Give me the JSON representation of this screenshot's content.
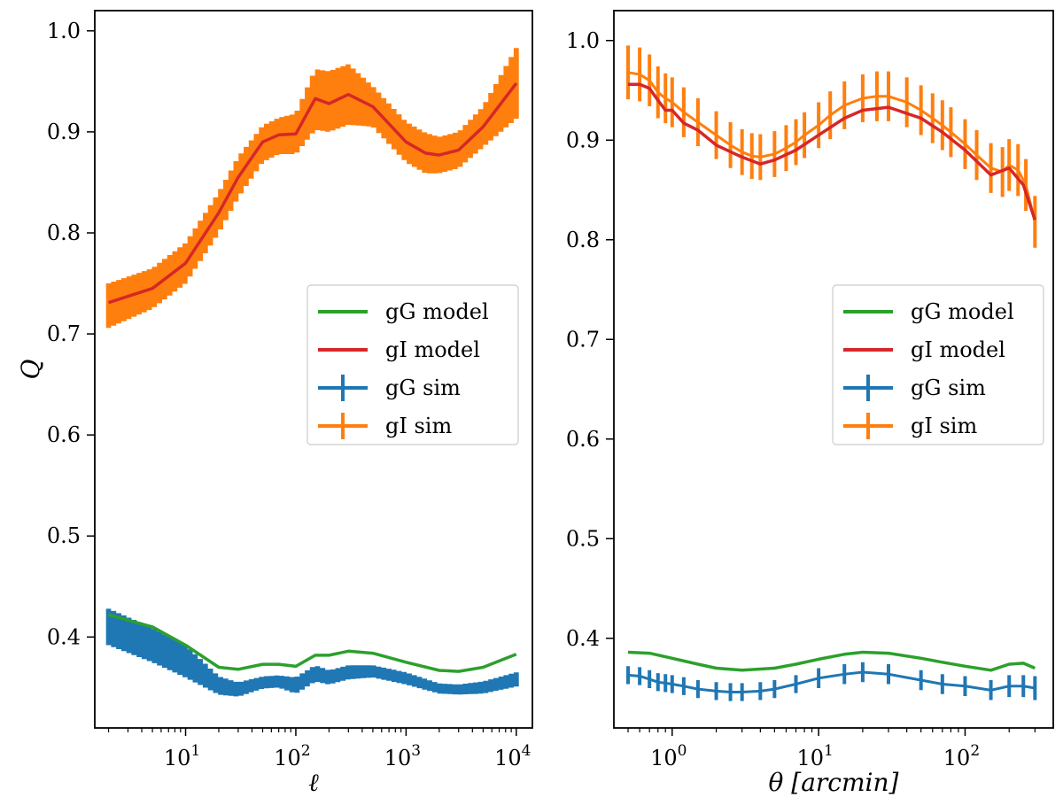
{
  "chart_data": [
    {
      "type": "line",
      "id": "left",
      "xlabel": "ℓ",
      "ylabel": "Q",
      "xscale": "log",
      "xlim": [
        1.5,
        14000
      ],
      "ylim": [
        0.31,
        1.02
      ],
      "grid": false,
      "legend_position": "center-right",
      "x_ticks": [
        10,
        100,
        1000,
        10000
      ],
      "x_tick_labels": [
        {
          "base": "10",
          "exp": "1"
        },
        {
          "base": "10",
          "exp": "2"
        },
        {
          "base": "10",
          "exp": "3"
        },
        {
          "base": "10",
          "exp": "4"
        }
      ],
      "y_ticks": [
        0.4,
        0.5,
        0.6,
        0.7,
        0.8,
        0.9,
        1.0
      ],
      "y_tick_labels": [
        "0.4",
        "0.5",
        "0.6",
        "0.7",
        "0.8",
        "0.9",
        "1.0"
      ],
      "legend": [
        {
          "label": "gG model",
          "color": "#2ca02c",
          "kind": "line"
        },
        {
          "label": "gI model",
          "color": "#d62728",
          "kind": "line"
        },
        {
          "label": "gG sim",
          "color": "#1f77b4",
          "kind": "errorbar"
        },
        {
          "label": "gI sim",
          "color": "#ff7f0e",
          "kind": "errorbar"
        }
      ],
      "series": [
        {
          "name": "gG model",
          "kind": "line",
          "color": "#2ca02c",
          "x": [
            2,
            5,
            10,
            20,
            30,
            50,
            70,
            100,
            150,
            200,
            300,
            500,
            1000,
            2000,
            3000,
            5000,
            10000
          ],
          "y": [
            0.422,
            0.41,
            0.392,
            0.37,
            0.368,
            0.373,
            0.373,
            0.371,
            0.382,
            0.382,
            0.386,
            0.384,
            0.375,
            0.367,
            0.366,
            0.37,
            0.383
          ]
        },
        {
          "name": "gI model",
          "kind": "line",
          "color": "#d62728",
          "x": [
            2,
            5,
            10,
            20,
            30,
            50,
            70,
            100,
            150,
            200,
            300,
            500,
            700,
            1000,
            1500,
            2000,
            3000,
            5000,
            10000
          ],
          "y": [
            0.731,
            0.745,
            0.77,
            0.82,
            0.855,
            0.89,
            0.897,
            0.898,
            0.933,
            0.928,
            0.937,
            0.925,
            0.908,
            0.89,
            0.879,
            0.877,
            0.882,
            0.905,
            0.948
          ]
        },
        {
          "name": "gG sim",
          "kind": "band",
          "color": "#1f77b4",
          "x": [
            2,
            5,
            10,
            20,
            30,
            50,
            70,
            100,
            150,
            200,
            300,
            500,
            1000,
            2000,
            3000,
            5000,
            10000
          ],
          "y": [
            0.41,
            0.392,
            0.376,
            0.352,
            0.348,
            0.355,
            0.356,
            0.352,
            0.364,
            0.36,
            0.365,
            0.366,
            0.359,
            0.349,
            0.348,
            0.35,
            0.358
          ],
          "err": [
            0.018,
            0.017,
            0.016,
            0.009,
            0.007,
            0.006,
            0.006,
            0.008,
            0.008,
            0.007,
            0.007,
            0.006,
            0.006,
            0.005,
            0.005,
            0.006,
            0.007
          ]
        },
        {
          "name": "gI sim",
          "kind": "band",
          "color": "#ff7f0e",
          "x": [
            2,
            5,
            10,
            20,
            30,
            50,
            70,
            100,
            150,
            200,
            300,
            500,
            700,
            1000,
            1500,
            2000,
            3000,
            5000,
            10000
          ],
          "y": [
            0.728,
            0.745,
            0.77,
            0.82,
            0.855,
            0.888,
            0.896,
            0.898,
            0.932,
            0.93,
            0.937,
            0.925,
            0.908,
            0.89,
            0.879,
            0.877,
            0.882,
            0.905,
            0.948
          ],
          "err": [
            0.022,
            0.02,
            0.02,
            0.02,
            0.02,
            0.018,
            0.018,
            0.02,
            0.03,
            0.03,
            0.03,
            0.02,
            0.02,
            0.02,
            0.02,
            0.018,
            0.018,
            0.02,
            0.035
          ]
        }
      ]
    },
    {
      "type": "line",
      "id": "right",
      "xlabel": "θ [arcmin]",
      "ylabel": "",
      "xscale": "log",
      "xlim": [
        0.4,
        400
      ],
      "ylim": [
        0.31,
        1.03
      ],
      "grid": false,
      "legend_position": "center-right",
      "x_ticks": [
        1,
        10,
        100
      ],
      "x_tick_labels": [
        {
          "base": "10",
          "exp": "0"
        },
        {
          "base": "10",
          "exp": "1"
        },
        {
          "base": "10",
          "exp": "2"
        }
      ],
      "y_ticks": [
        0.4,
        0.5,
        0.6,
        0.7,
        0.8,
        0.9,
        1.0
      ],
      "y_tick_labels": [
        "0.4",
        "0.5",
        "0.6",
        "0.7",
        "0.8",
        "0.9",
        "1.0"
      ],
      "legend": [
        {
          "label": "gG model",
          "color": "#2ca02c",
          "kind": "line"
        },
        {
          "label": "gI model",
          "color": "#d62728",
          "kind": "line"
        },
        {
          "label": "gG sim",
          "color": "#1f77b4",
          "kind": "errorbar"
        },
        {
          "label": "gI sim",
          "color": "#ff7f0e",
          "kind": "errorbar"
        }
      ],
      "series": [
        {
          "name": "gG model",
          "kind": "line",
          "color": "#2ca02c",
          "x": [
            0.5,
            0.7,
            1.0,
            1.5,
            2,
            3,
            5,
            7,
            10,
            15,
            20,
            30,
            50,
            70,
            100,
            150,
            200,
            250,
            300
          ],
          "y": [
            0.386,
            0.385,
            0.38,
            0.374,
            0.37,
            0.368,
            0.37,
            0.374,
            0.379,
            0.384,
            0.386,
            0.385,
            0.38,
            0.376,
            0.372,
            0.368,
            0.374,
            0.375,
            0.37
          ]
        },
        {
          "name": "gI model",
          "kind": "line",
          "color": "#d62728",
          "x": [
            0.5,
            0.6,
            0.7,
            0.8,
            0.9,
            1.0,
            1.2,
            1.5,
            2,
            3,
            4,
            5,
            7,
            10,
            15,
            20,
            30,
            50,
            70,
            100,
            150,
            200,
            250,
            300
          ],
          "y": [
            0.956,
            0.956,
            0.952,
            0.94,
            0.93,
            0.93,
            0.917,
            0.91,
            0.895,
            0.883,
            0.876,
            0.88,
            0.89,
            0.905,
            0.922,
            0.93,
            0.933,
            0.922,
            0.908,
            0.89,
            0.865,
            0.872,
            0.855,
            0.82
          ]
        },
        {
          "name": "gG sim",
          "kind": "errorbar",
          "color": "#1f77b4",
          "x": [
            0.5,
            0.6,
            0.7,
            0.8,
            0.9,
            1.0,
            1.2,
            1.5,
            2,
            2.5,
            3,
            4,
            5,
            7,
            10,
            15,
            20,
            30,
            50,
            70,
            100,
            150,
            200,
            250,
            300
          ],
          "y": [
            0.363,
            0.362,
            0.359,
            0.356,
            0.355,
            0.354,
            0.352,
            0.349,
            0.347,
            0.346,
            0.346,
            0.347,
            0.349,
            0.354,
            0.36,
            0.364,
            0.366,
            0.364,
            0.358,
            0.354,
            0.352,
            0.348,
            0.352,
            0.352,
            0.35
          ],
          "err": [
            0.009,
            0.009,
            0.009,
            0.009,
            0.009,
            0.009,
            0.009,
            0.009,
            0.009,
            0.009,
            0.009,
            0.009,
            0.009,
            0.009,
            0.01,
            0.01,
            0.01,
            0.01,
            0.01,
            0.01,
            0.01,
            0.01,
            0.011,
            0.011,
            0.012
          ]
        },
        {
          "name": "gI sim",
          "kind": "errorbar",
          "color": "#ff7f0e",
          "x": [
            0.5,
            0.6,
            0.7,
            0.8,
            0.9,
            1.0,
            1.2,
            1.5,
            2,
            2.5,
            3,
            3.5,
            4,
            5,
            6,
            7,
            8,
            10,
            12,
            15,
            20,
            25,
            30,
            40,
            50,
            60,
            70,
            80,
            100,
            120,
            150,
            180,
            200,
            230,
            260,
            300
          ],
          "y": [
            0.968,
            0.966,
            0.96,
            0.948,
            0.942,
            0.938,
            0.928,
            0.918,
            0.905,
            0.895,
            0.888,
            0.884,
            0.883,
            0.886,
            0.892,
            0.898,
            0.905,
            0.915,
            0.925,
            0.935,
            0.942,
            0.944,
            0.944,
            0.938,
            0.93,
            0.922,
            0.915,
            0.908,
            0.896,
            0.885,
            0.872,
            0.868,
            0.875,
            0.87,
            0.855,
            0.818
          ],
          "err": [
            0.027,
            0.027,
            0.026,
            0.026,
            0.025,
            0.025,
            0.025,
            0.024,
            0.024,
            0.023,
            0.023,
            0.023,
            0.023,
            0.023,
            0.023,
            0.023,
            0.023,
            0.023,
            0.024,
            0.024,
            0.024,
            0.025,
            0.025,
            0.025,
            0.025,
            0.025,
            0.025,
            0.025,
            0.025,
            0.025,
            0.025,
            0.025,
            0.026,
            0.026,
            0.026,
            0.026
          ]
        }
      ]
    }
  ]
}
